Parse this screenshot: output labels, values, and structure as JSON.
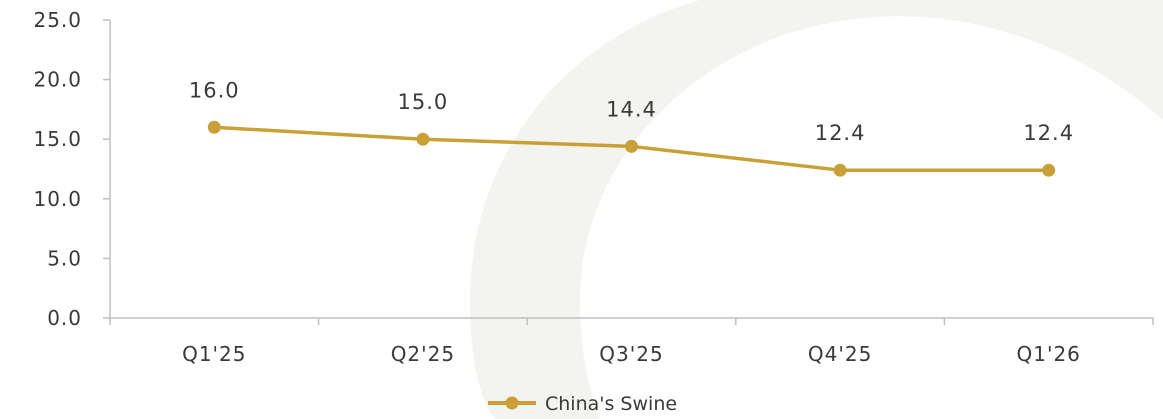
{
  "chart_data": {
    "type": "line",
    "categories": [
      "Q1'25",
      "Q2'25",
      "Q3'25",
      "Q4'25",
      "Q1'26"
    ],
    "series": [
      {
        "name": "China's Swine",
        "values": [
          16.0,
          15.0,
          14.4,
          12.4,
          12.4
        ],
        "data_labels": [
          "16.0",
          "15.0",
          "14.4",
          "12.4",
          "12.4"
        ],
        "color": "#c9a038"
      }
    ],
    "y_ticks": [
      "0.0",
      "5.0",
      "10.0",
      "15.0",
      "20.0",
      "25.0"
    ],
    "ylim": [
      0,
      25
    ],
    "grid": false,
    "legend_position": "bottom-center",
    "axis_color": "#bfbfbf",
    "background_watermark_color": "#f3f3f0"
  }
}
